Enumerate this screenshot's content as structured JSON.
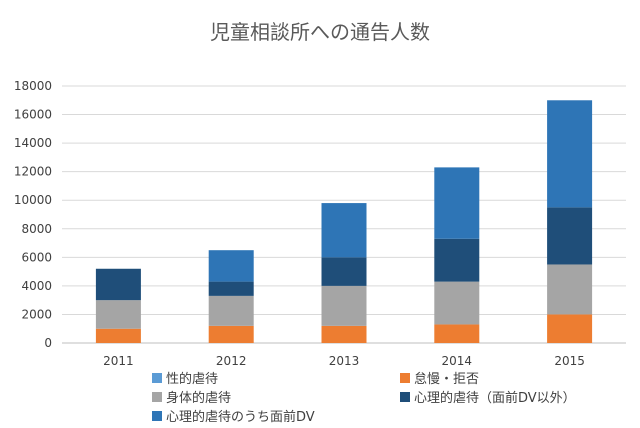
{
  "chart_data": {
    "type": "bar",
    "stacked": true,
    "title": "児童相談所への通告人数",
    "xlabel": "",
    "ylabel": "",
    "categories": [
      "2011",
      "2012",
      "2013",
      "2014",
      "2015"
    ],
    "ylim": [
      0,
      18000
    ],
    "yticks": [
      0,
      2000,
      4000,
      6000,
      8000,
      10000,
      12000,
      14000,
      16000,
      18000
    ],
    "grid": true,
    "legend_position": "bottom",
    "series": [
      {
        "name": "性的虐待",
        "color": "#5b9bd5",
        "values": [
          0,
          0,
          0,
          0,
          0
        ]
      },
      {
        "name": "怠慢・拒否",
        "color": "#ed7d31",
        "values": [
          1000,
          1200,
          1200,
          1300,
          2000
        ]
      },
      {
        "name": "身体的虐待",
        "color": "#a5a5a5",
        "values": [
          2000,
          2100,
          2800,
          3000,
          3500
        ]
      },
      {
        "name": "心理的虐待（面前DV以外）",
        "color": "#1f4e79",
        "values": [
          2200,
          1000,
          2000,
          3000,
          4000
        ]
      },
      {
        "name": "心理的虐待のうち面前DV",
        "color": "#2e75b6",
        "values": [
          0,
          2200,
          3800,
          5000,
          7500
        ]
      }
    ]
  }
}
